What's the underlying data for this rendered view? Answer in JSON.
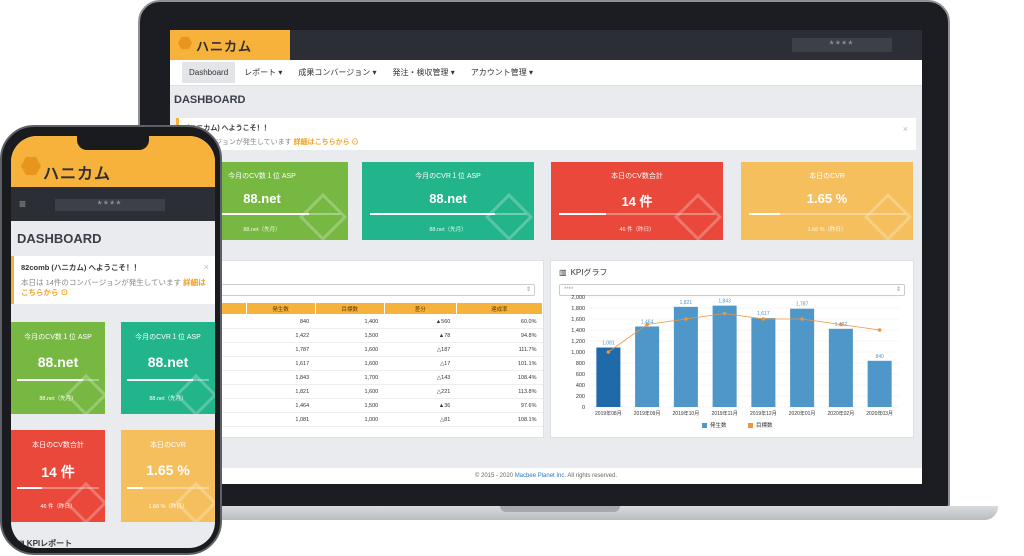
{
  "app": {
    "logo_text": "ハニカム",
    "user_masked": "****",
    "page_title": "DASHBOARD"
  },
  "nav": [
    {
      "label": "Dashboard",
      "active": true
    },
    {
      "label": "レポート ▾"
    },
    {
      "label": "成果コンバージョン ▾"
    },
    {
      "label": "発注・検収管理 ▾"
    },
    {
      "label": "アカウント管理 ▾"
    }
  ],
  "welcome": {
    "laptop_line1": "(ハニカム) へようこそ！！",
    "laptop_line2": "コンバージョンが発生しています",
    "phone_line1": "82comb (ハニカム) へようこそ！！",
    "phone_line2": "本日は 14件のコンバージョンが発生しています",
    "link": "詳細はこちらから ⊙",
    "close": "×"
  },
  "kpis": [
    {
      "title": "今月のCV数１位 ASP",
      "value": "88.net",
      "sub": "88.net（先月）",
      "color": "#77b843",
      "bar": 0.8
    },
    {
      "title": "今月のCVR１位 ASP",
      "value": "88.net",
      "sub": "88.net（先月）",
      "color": "#22b48a",
      "bar": 0.8
    },
    {
      "title": "本日のCV数合計",
      "value": "14 件",
      "sub": "46 件（昨日）",
      "color": "#e9483a",
      "bar": 0.3
    },
    {
      "title": "本日のCVR",
      "value": "1.65 %",
      "sub": "1.66 %（昨日）",
      "color": "#f6bf5e",
      "bar": 0.2
    }
  ],
  "report": {
    "title": "ート",
    "select": "",
    "headers": [
      "",
      "発生数",
      "目標数",
      "差分",
      "達成率"
    ],
    "rows": [
      {
        "date": "01日",
        "actual": "840",
        "target": "1,400",
        "diff": "▲560",
        "diff_dir": "up",
        "rate": "60.0%",
        "rate_ok": false
      },
      {
        "date": "01日",
        "actual": "1,422",
        "target": "1,500",
        "diff": "▲78",
        "diff_dir": "up",
        "rate": "94.8%",
        "rate_ok": false
      },
      {
        "date": "01日",
        "actual": "1,787",
        "target": "1,600",
        "diff": "△187",
        "diff_dir": "dn",
        "rate": "111.7%",
        "rate_ok": true
      },
      {
        "date": "01日",
        "actual": "1,617",
        "target": "1,600",
        "diff": "△17",
        "diff_dir": "dn",
        "rate": "101.1%",
        "rate_ok": true
      },
      {
        "date": "01日",
        "actual": "1,843",
        "target": "1,700",
        "diff": "△143",
        "diff_dir": "dn",
        "rate": "108.4%",
        "rate_ok": true
      },
      {
        "date": "01日",
        "actual": "1,821",
        "target": "1,600",
        "diff": "△221",
        "diff_dir": "dn",
        "rate": "113.8%",
        "rate_ok": true
      },
      {
        "date": "01日",
        "actual": "1,464",
        "target": "1,500",
        "diff": "▲36",
        "diff_dir": "up",
        "rate": "97.6%",
        "rate_ok": false
      },
      {
        "date": "01日",
        "actual": "1,081",
        "target": "1,000",
        "diff": "△81",
        "diff_dir": "dn",
        "rate": "108.1%",
        "rate_ok": true
      }
    ]
  },
  "kpi_graph": {
    "title": "KPIグラフ",
    "select": "****"
  },
  "chart_data": {
    "type": "bar",
    "categories": [
      "2019年08月",
      "2019年09月",
      "2019年10月",
      "2019年11月",
      "2019年12月",
      "2020年01月",
      "2020年02月",
      "2020年03月"
    ],
    "series": [
      {
        "name": "発生数",
        "values": [
          1081,
          1464,
          1821,
          1843,
          1617,
          1787,
          1422,
          840
        ],
        "color": "#4f97c8"
      },
      {
        "name": "目標数",
        "values": [
          1000,
          1500,
          1600,
          1700,
          1600,
          1600,
          1500,
          1400
        ],
        "color": "#f0943a"
      }
    ],
    "data_labels": [
      "1,081",
      "1,464",
      "1,821",
      "1,843",
      "1,617",
      "1,787",
      "1,422",
      "840"
    ],
    "yticks": [
      "0",
      "200",
      "400",
      "600",
      "800",
      "1,000",
      "1,200",
      "1,400",
      "1,600",
      "1,800",
      "2,000"
    ],
    "ylim": [
      0,
      2000
    ],
    "highlight_bar_color": "#1f6aa8",
    "legend_position": "bottom"
  },
  "phone": {
    "kpi_report_title": "KPIレポート",
    "menu_icon": "≡"
  },
  "footer": {
    "text": "© 2015 - 2020",
    "link": "Macbee Planet Inc.",
    "tail": "All rights reserved."
  }
}
